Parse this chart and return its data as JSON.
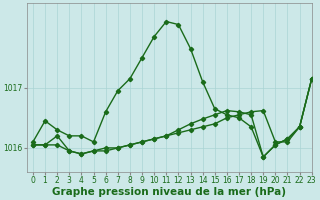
{
  "title": "Graphe pression niveau de la mer (hPa)",
  "background_color": "#cce8e8",
  "line_color": "#1a6b1a",
  "xlim": [
    -0.5,
    23
  ],
  "ylim": [
    1015.6,
    1018.4
  ],
  "yticks": [
    1016,
    1017
  ],
  "xticks": [
    0,
    1,
    2,
    3,
    4,
    5,
    6,
    7,
    8,
    9,
    10,
    11,
    12,
    13,
    14,
    15,
    16,
    17,
    18,
    19,
    20,
    21,
    22,
    23
  ],
  "series": [
    {
      "x": [
        0,
        1,
        2,
        3,
        4,
        5,
        6,
        7,
        8,
        9,
        10,
        11,
        12,
        13,
        14,
        15,
        16,
        17,
        18,
        19,
        20,
        21,
        22,
        23
      ],
      "y": [
        1016.1,
        1016.45,
        1016.3,
        1016.2,
        1016.2,
        1016.1,
        1016.6,
        1016.95,
        1017.15,
        1017.5,
        1017.85,
        1018.1,
        1018.05,
        1017.65,
        1017.1,
        1016.65,
        1016.55,
        1016.5,
        1016.35,
        1015.85,
        1016.05,
        1016.15,
        1016.35,
        1017.15
      ]
    },
    {
      "x": [
        0,
        1,
        2,
        3,
        4,
        5,
        6,
        7,
        8,
        9,
        10,
        11,
        12,
        13,
        14,
        15,
        16,
        17,
        18,
        19,
        20,
        21,
        22,
        23
      ],
      "y": [
        1016.05,
        1016.05,
        1016.05,
        1015.95,
        1015.9,
        1015.95,
        1015.95,
        1016.0,
        1016.05,
        1016.1,
        1016.15,
        1016.2,
        1016.25,
        1016.3,
        1016.35,
        1016.4,
        1016.5,
        1016.55,
        1016.6,
        1016.62,
        1016.1,
        1016.1,
        1016.35,
        1017.15
      ]
    },
    {
      "x": [
        0,
        1,
        2,
        3,
        4,
        5,
        6,
        7,
        8,
        9,
        10,
        11,
        12,
        13,
        14,
        15,
        16,
        17,
        18,
        19,
        20,
        21,
        22,
        23
      ],
      "y": [
        1016.05,
        1016.05,
        1016.2,
        1015.95,
        1015.9,
        1015.95,
        1016.0,
        1016.0,
        1016.05,
        1016.1,
        1016.15,
        1016.2,
        1016.3,
        1016.4,
        1016.48,
        1016.55,
        1016.62,
        1016.6,
        1016.55,
        1015.85,
        1016.05,
        1016.15,
        1016.35,
        1017.15
      ]
    }
  ],
  "grid_color": "#aad4d4",
  "marker": "D",
  "markersize": 2.2,
  "linewidth": 1.0,
  "title_fontsize": 7.5,
  "tick_fontsize": 5.5
}
